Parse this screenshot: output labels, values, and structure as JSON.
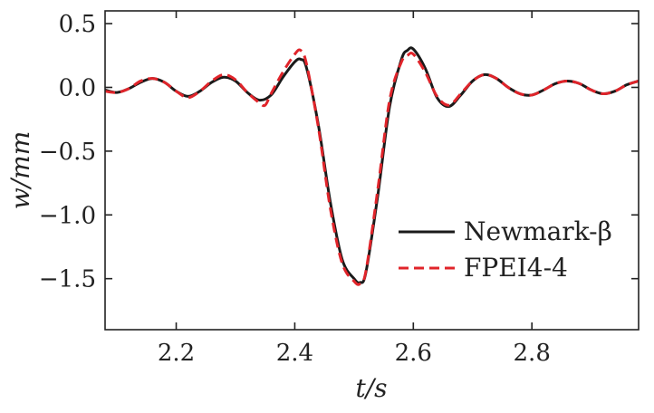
{
  "chart_data": {
    "type": "line",
    "xlabel": "t/s",
    "ylabel": "w/mm",
    "xlim": [
      2.08,
      2.98
    ],
    "ylim": [
      -1.9,
      0.6
    ],
    "xticks": [
      2.2,
      2.4,
      2.6,
      2.8
    ],
    "yticks": [
      0.5,
      0.0,
      -0.5,
      -1.0,
      -1.5
    ],
    "xtick_labels": [
      "2.2",
      "2.4",
      "2.6",
      "2.8"
    ],
    "ytick_labels": [
      "0.5",
      "0.0",
      "−0.5",
      "−1.0",
      "−1.5"
    ],
    "grid": false,
    "legend_position": "lower-right",
    "series": [
      {
        "name": "Newmark-β",
        "color": "#1a1a1a",
        "style": "solid",
        "x": [
          2.08,
          2.1,
          2.12,
          2.14,
          2.16,
          2.18,
          2.2,
          2.22,
          2.24,
          2.26,
          2.28,
          2.3,
          2.32,
          2.34,
          2.36,
          2.38,
          2.4,
          2.41,
          2.42,
          2.44,
          2.46,
          2.48,
          2.5,
          2.51,
          2.52,
          2.54,
          2.56,
          2.58,
          2.59,
          2.6,
          2.62,
          2.64,
          2.66,
          2.68,
          2.7,
          2.72,
          2.74,
          2.76,
          2.78,
          2.8,
          2.82,
          2.84,
          2.86,
          2.88,
          2.9,
          2.92,
          2.94,
          2.96,
          2.98
        ],
        "y": [
          -0.02,
          -0.04,
          -0.01,
          0.04,
          0.07,
          0.04,
          -0.03,
          -0.07,
          -0.03,
          0.04,
          0.08,
          0.05,
          -0.04,
          -0.1,
          -0.06,
          0.08,
          0.2,
          0.22,
          0.15,
          -0.3,
          -0.9,
          -1.35,
          -1.5,
          -1.53,
          -1.45,
          -0.85,
          -0.15,
          0.22,
          0.29,
          0.3,
          0.15,
          -0.08,
          -0.15,
          -0.06,
          0.05,
          0.1,
          0.07,
          0.0,
          -0.05,
          -0.06,
          -0.02,
          0.03,
          0.05,
          0.03,
          -0.02,
          -0.05,
          -0.03,
          0.02,
          0.05
        ]
      },
      {
        "name": "FPEI4-4",
        "color": "#e0242a",
        "style": "dashed",
        "x": [
          2.08,
          2.1,
          2.12,
          2.14,
          2.16,
          2.18,
          2.2,
          2.22,
          2.24,
          2.26,
          2.28,
          2.3,
          2.32,
          2.34,
          2.35,
          2.36,
          2.38,
          2.4,
          2.41,
          2.42,
          2.44,
          2.46,
          2.48,
          2.5,
          2.51,
          2.52,
          2.54,
          2.56,
          2.58,
          2.59,
          2.6,
          2.62,
          2.64,
          2.66,
          2.68,
          2.7,
          2.72,
          2.74,
          2.76,
          2.78,
          2.8,
          2.82,
          2.84,
          2.86,
          2.88,
          2.9,
          2.92,
          2.94,
          2.96,
          2.98
        ],
        "y": [
          -0.03,
          -0.04,
          -0.01,
          0.05,
          0.07,
          0.04,
          -0.03,
          -0.08,
          -0.03,
          0.05,
          0.1,
          0.06,
          -0.04,
          -0.12,
          -0.14,
          -0.05,
          0.12,
          0.26,
          0.29,
          0.18,
          -0.32,
          -0.95,
          -1.38,
          -1.52,
          -1.54,
          -1.44,
          -0.8,
          -0.1,
          0.2,
          0.25,
          0.26,
          0.12,
          -0.07,
          -0.14,
          -0.05,
          0.05,
          0.1,
          0.07,
          0.0,
          -0.05,
          -0.06,
          -0.02,
          0.03,
          0.05,
          0.03,
          -0.02,
          -0.05,
          -0.03,
          0.02,
          0.05
        ]
      }
    ]
  }
}
